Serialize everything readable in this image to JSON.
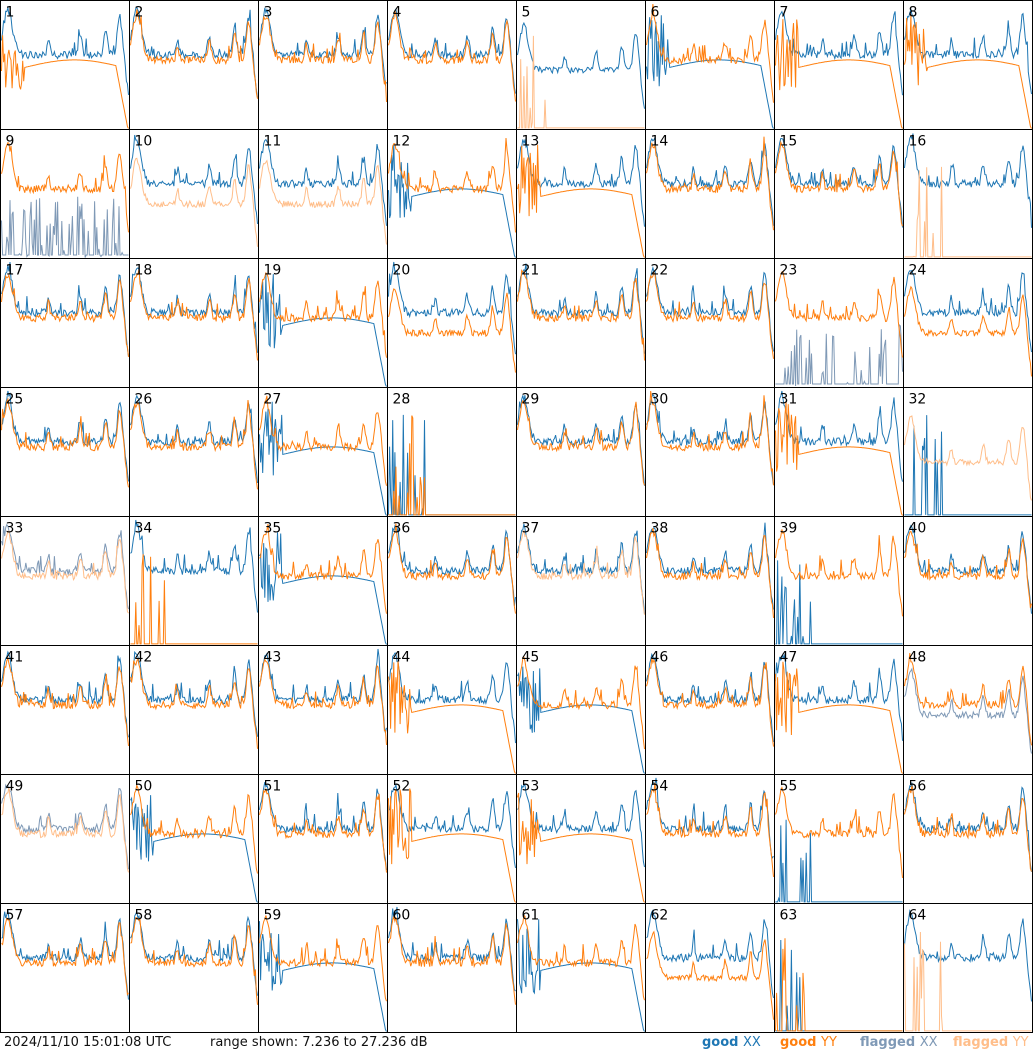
{
  "timestamp": "2024/11/10 15:01:08 UTC",
  "range_text": "range shown: 7.236 to 27.236 dB",
  "legend": [
    {
      "key": "good",
      "pol": "XX",
      "color": "#1f77b4"
    },
    {
      "key": "good",
      "pol": "YY",
      "color": "#ff7f0e"
    },
    {
      "key": "flagged",
      "pol": "XX",
      "color": "#7f99b6"
    },
    {
      "key": "flagged",
      "pol": "YY",
      "color": "#ffbe8a"
    }
  ],
  "chart_data": {
    "type": "line",
    "grid": {
      "rows": 8,
      "cols": 8
    },
    "ylim": [
      7.236,
      27.236
    ],
    "y_unit": "dB",
    "tiles": [
      {
        "n": "1",
        "xx": "good",
        "yy": "good",
        "xx_shape": "normal",
        "yy_shape": "drooped"
      },
      {
        "n": "2",
        "xx": "good",
        "yy": "good",
        "xx_shape": "normal",
        "yy_shape": "normal"
      },
      {
        "n": "3",
        "xx": "good",
        "yy": "good",
        "xx_shape": "normal",
        "yy_shape": "normal"
      },
      {
        "n": "4",
        "xx": "good",
        "yy": "good",
        "xx_shape": "normal",
        "yy_shape": "normal"
      },
      {
        "n": "5",
        "xx": "good",
        "yy": "flagged",
        "xx_shape": "low",
        "yy_shape": "dead"
      },
      {
        "n": "6",
        "xx": "good",
        "yy": "good",
        "xx_shape": "drooped",
        "yy_shape": "normal"
      },
      {
        "n": "7",
        "xx": "good",
        "yy": "good",
        "xx_shape": "normal",
        "yy_shape": "drooped"
      },
      {
        "n": "8",
        "xx": "good",
        "yy": "good",
        "xx_shape": "normal",
        "yy_shape": "drooped"
      },
      {
        "n": "9",
        "xx": "flagged",
        "yy": "good",
        "xx_shape": "spiky",
        "yy_shape": "normal"
      },
      {
        "n": "10",
        "xx": "good",
        "yy": "flagged",
        "xx_shape": "normal",
        "yy_shape": "low"
      },
      {
        "n": "11",
        "xx": "good",
        "yy": "flagged",
        "xx_shape": "normal",
        "yy_shape": "low"
      },
      {
        "n": "12",
        "xx": "good",
        "yy": "good",
        "xx_shape": "drooped",
        "yy_shape": "normal"
      },
      {
        "n": "13",
        "xx": "good",
        "yy": "good",
        "xx_shape": "normal",
        "yy_shape": "drooped"
      },
      {
        "n": "14",
        "xx": "good",
        "yy": "good",
        "xx_shape": "normal",
        "yy_shape": "normal"
      },
      {
        "n": "15",
        "xx": "good",
        "yy": "good",
        "xx_shape": "normal",
        "yy_shape": "normal"
      },
      {
        "n": "16",
        "xx": "good",
        "yy": "flagged",
        "xx_shape": "normal",
        "yy_shape": "dead"
      },
      {
        "n": "17",
        "xx": "good",
        "yy": "good",
        "xx_shape": "normal",
        "yy_shape": "normal"
      },
      {
        "n": "18",
        "xx": "good",
        "yy": "good",
        "xx_shape": "normal",
        "yy_shape": "normal"
      },
      {
        "n": "19",
        "xx": "good",
        "yy": "good",
        "xx_shape": "drooped",
        "yy_shape": "normal"
      },
      {
        "n": "20",
        "xx": "good",
        "yy": "good",
        "xx_shape": "normal",
        "yy_shape": "low"
      },
      {
        "n": "21",
        "xx": "good",
        "yy": "good",
        "xx_shape": "normal",
        "yy_shape": "normal"
      },
      {
        "n": "22",
        "xx": "good",
        "yy": "good",
        "xx_shape": "normal",
        "yy_shape": "normal"
      },
      {
        "n": "23",
        "xx": "flagged",
        "yy": "good",
        "xx_shape": "spiky",
        "yy_shape": "normal"
      },
      {
        "n": "24",
        "xx": "good",
        "yy": "good",
        "xx_shape": "normal",
        "yy_shape": "low"
      },
      {
        "n": "25",
        "xx": "good",
        "yy": "good",
        "xx_shape": "normal",
        "yy_shape": "normal"
      },
      {
        "n": "26",
        "xx": "good",
        "yy": "good",
        "xx_shape": "normal",
        "yy_shape": "normal"
      },
      {
        "n": "27",
        "xx": "good",
        "yy": "good",
        "xx_shape": "drooped",
        "yy_shape": "normal"
      },
      {
        "n": "28",
        "xx": "good",
        "yy": "good",
        "xx_shape": "dead",
        "yy_shape": "dead"
      },
      {
        "n": "29",
        "xx": "good",
        "yy": "good",
        "xx_shape": "normal",
        "yy_shape": "normal"
      },
      {
        "n": "30",
        "xx": "good",
        "yy": "good",
        "xx_shape": "normal",
        "yy_shape": "normal"
      },
      {
        "n": "31",
        "xx": "good",
        "yy": "good",
        "xx_shape": "normal",
        "yy_shape": "drooped"
      },
      {
        "n": "32",
        "xx": "good",
        "yy": "flagged",
        "xx_shape": "dead",
        "yy_shape": "low"
      },
      {
        "n": "33",
        "xx": "flagged",
        "yy": "flagged",
        "xx_shape": "normal",
        "yy_shape": "normal"
      },
      {
        "n": "34",
        "xx": "good",
        "yy": "good",
        "xx_shape": "normal",
        "yy_shape": "dead"
      },
      {
        "n": "35",
        "xx": "good",
        "yy": "good",
        "xx_shape": "drooped",
        "yy_shape": "normal"
      },
      {
        "n": "36",
        "xx": "good",
        "yy": "good",
        "xx_shape": "normal",
        "yy_shape": "normal"
      },
      {
        "n": "37",
        "xx": "good",
        "yy": "flagged",
        "xx_shape": "normal",
        "yy_shape": "normal"
      },
      {
        "n": "38",
        "xx": "good",
        "yy": "good",
        "xx_shape": "normal",
        "yy_shape": "normal"
      },
      {
        "n": "39",
        "xx": "good",
        "yy": "good",
        "xx_shape": "dead",
        "yy_shape": "normal"
      },
      {
        "n": "40",
        "xx": "good",
        "yy": "good",
        "xx_shape": "normal",
        "yy_shape": "normal"
      },
      {
        "n": "41",
        "xx": "good",
        "yy": "good",
        "xx_shape": "normal",
        "yy_shape": "normal"
      },
      {
        "n": "42",
        "xx": "good",
        "yy": "good",
        "xx_shape": "normal",
        "yy_shape": "normal"
      },
      {
        "n": "43",
        "xx": "good",
        "yy": "good",
        "xx_shape": "normal",
        "yy_shape": "normal"
      },
      {
        "n": "44",
        "xx": "good",
        "yy": "good",
        "xx_shape": "normal",
        "yy_shape": "drooped"
      },
      {
        "n": "45",
        "xx": "good",
        "yy": "good",
        "xx_shape": "drooped",
        "yy_shape": "normal"
      },
      {
        "n": "46",
        "xx": "good",
        "yy": "good",
        "xx_shape": "normal",
        "yy_shape": "normal"
      },
      {
        "n": "47",
        "xx": "good",
        "yy": "good",
        "xx_shape": "normal",
        "yy_shape": "drooped"
      },
      {
        "n": "48",
        "xx": "flagged",
        "yy": "good",
        "xx_shape": "low",
        "yy_shape": "normal"
      },
      {
        "n": "49",
        "xx": "flagged",
        "yy": "flagged",
        "xx_shape": "normal",
        "yy_shape": "normal"
      },
      {
        "n": "50",
        "xx": "good",
        "yy": "good",
        "xx_shape": "drooped",
        "yy_shape": "normal"
      },
      {
        "n": "51",
        "xx": "good",
        "yy": "good",
        "xx_shape": "normal",
        "yy_shape": "normal"
      },
      {
        "n": "52",
        "xx": "good",
        "yy": "good",
        "xx_shape": "normal",
        "yy_shape": "drooped"
      },
      {
        "n": "53",
        "xx": "good",
        "yy": "good",
        "xx_shape": "normal",
        "yy_shape": "drooped"
      },
      {
        "n": "54",
        "xx": "good",
        "yy": "good",
        "xx_shape": "normal",
        "yy_shape": "normal"
      },
      {
        "n": "55",
        "xx": "good",
        "yy": "good",
        "xx_shape": "dead",
        "yy_shape": "normal"
      },
      {
        "n": "56",
        "xx": "good",
        "yy": "good",
        "xx_shape": "normal",
        "yy_shape": "normal"
      },
      {
        "n": "57",
        "xx": "good",
        "yy": "good",
        "xx_shape": "normal",
        "yy_shape": "normal"
      },
      {
        "n": "58",
        "xx": "good",
        "yy": "good",
        "xx_shape": "normal",
        "yy_shape": "normal"
      },
      {
        "n": "59",
        "xx": "good",
        "yy": "good",
        "xx_shape": "drooped",
        "yy_shape": "normal"
      },
      {
        "n": "60",
        "xx": "good",
        "yy": "good",
        "xx_shape": "normal",
        "yy_shape": "normal"
      },
      {
        "n": "61",
        "xx": "good",
        "yy": "good",
        "xx_shape": "drooped",
        "yy_shape": "normal"
      },
      {
        "n": "62",
        "xx": "good",
        "yy": "good",
        "xx_shape": "normal",
        "yy_shape": "low"
      },
      {
        "n": "63",
        "xx": "good",
        "yy": "good",
        "xx_shape": "dead",
        "yy_shape": "dead"
      },
      {
        "n": "64",
        "xx": "good",
        "yy": "flagged",
        "xx_shape": "normal",
        "yy_shape": "dead"
      }
    ]
  }
}
